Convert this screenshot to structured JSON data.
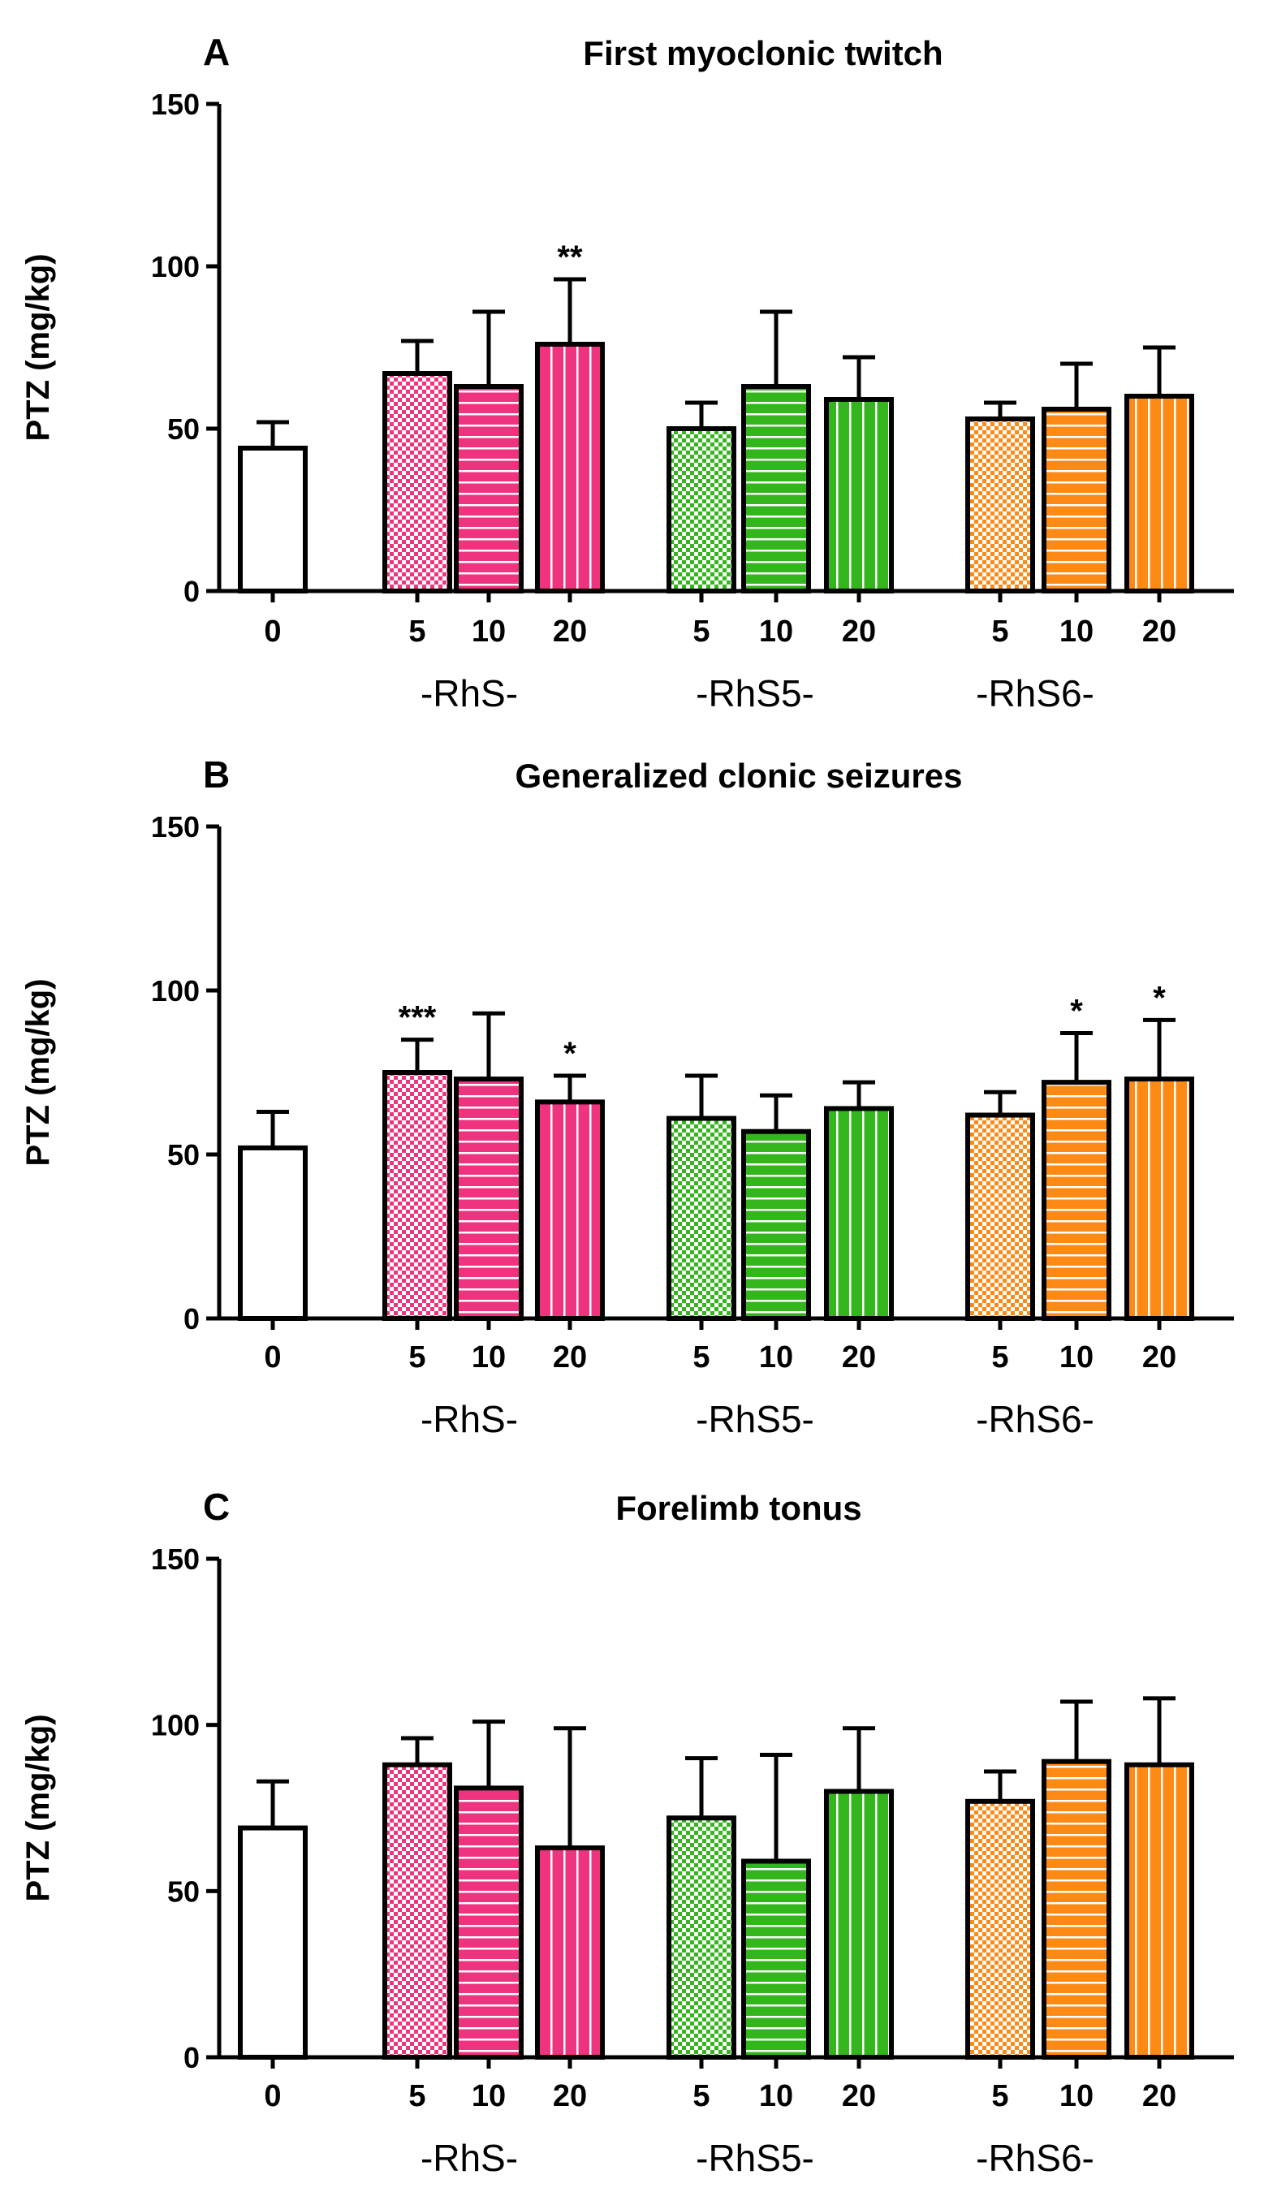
{
  "chart_data": [
    {
      "type": "bar",
      "panel_label": "A",
      "title": "First myoclonic twitch",
      "ylabel": "PTZ (mg/kg)",
      "ylim": [
        0,
        150
      ],
      "yticks": [
        0,
        50,
        100,
        150
      ],
      "groups": [
        {
          "label": "",
          "bars": [
            {
              "dose": "0",
              "value": 44,
              "err": 8,
              "color": "#ffffff",
              "pattern": "none",
              "sig": ""
            }
          ]
        },
        {
          "label": "-RhS-",
          "bars": [
            {
              "dose": "5",
              "value": 67,
              "err": 10,
              "color": "#f0337f",
              "pattern": "check",
              "sig": ""
            },
            {
              "dose": "10",
              "value": 63,
              "err": 23,
              "color": "#f0337f",
              "pattern": "hstripe",
              "sig": ""
            },
            {
              "dose": "20",
              "value": 76,
              "err": 20,
              "color": "#f0337f",
              "pattern": "vstripe",
              "sig": "**"
            }
          ]
        },
        {
          "label": "-RhS5-",
          "bars": [
            {
              "dose": "5",
              "value": 50,
              "err": 8,
              "color": "#33b51c",
              "pattern": "check",
              "sig": ""
            },
            {
              "dose": "10",
              "value": 63,
              "err": 23,
              "color": "#33b51c",
              "pattern": "hstripe",
              "sig": ""
            },
            {
              "dose": "20",
              "value": 59,
              "err": 13,
              "color": "#33b51c",
              "pattern": "vstripe",
              "sig": ""
            }
          ]
        },
        {
          "label": "-RhS6-",
          "bars": [
            {
              "dose": "5",
              "value": 53,
              "err": 5,
              "color": "#fe8a16",
              "pattern": "check",
              "sig": ""
            },
            {
              "dose": "10",
              "value": 56,
              "err": 14,
              "color": "#fe8a16",
              "pattern": "hstripe",
              "sig": ""
            },
            {
              "dose": "20",
              "value": 60,
              "err": 15,
              "color": "#fe8a16",
              "pattern": "vstripe",
              "sig": ""
            }
          ]
        }
      ]
    },
    {
      "type": "bar",
      "panel_label": "B",
      "title": "Generalized clonic seizures",
      "ylabel": "PTZ (mg/kg)",
      "ylim": [
        0,
        150
      ],
      "yticks": [
        0,
        50,
        100,
        150
      ],
      "groups": [
        {
          "label": "",
          "bars": [
            {
              "dose": "0",
              "value": 52,
              "err": 11,
              "color": "#ffffff",
              "pattern": "none",
              "sig": ""
            }
          ]
        },
        {
          "label": "-RhS-",
          "bars": [
            {
              "dose": "5",
              "value": 75,
              "err": 10,
              "color": "#f0337f",
              "pattern": "check",
              "sig": "***"
            },
            {
              "dose": "10",
              "value": 73,
              "err": 20,
              "color": "#f0337f",
              "pattern": "hstripe",
              "sig": ""
            },
            {
              "dose": "20",
              "value": 66,
              "err": 8,
              "color": "#f0337f",
              "pattern": "vstripe",
              "sig": "*"
            }
          ]
        },
        {
          "label": "-RhS5-",
          "bars": [
            {
              "dose": "5",
              "value": 61,
              "err": 13,
              "color": "#33b51c",
              "pattern": "check",
              "sig": ""
            },
            {
              "dose": "10",
              "value": 57,
              "err": 11,
              "color": "#33b51c",
              "pattern": "hstripe",
              "sig": ""
            },
            {
              "dose": "20",
              "value": 64,
              "err": 8,
              "color": "#33b51c",
              "pattern": "vstripe",
              "sig": ""
            }
          ]
        },
        {
          "label": "-RhS6-",
          "bars": [
            {
              "dose": "5",
              "value": 62,
              "err": 7,
              "color": "#fe8a16",
              "pattern": "check",
              "sig": ""
            },
            {
              "dose": "10",
              "value": 72,
              "err": 15,
              "color": "#fe8a16",
              "pattern": "hstripe",
              "sig": "*"
            },
            {
              "dose": "20",
              "value": 73,
              "err": 18,
              "color": "#fe8a16",
              "pattern": "vstripe",
              "sig": "*"
            }
          ]
        }
      ]
    },
    {
      "type": "bar",
      "panel_label": "C",
      "title": "Forelimb tonus",
      "ylabel": "PTZ (mg/kg)",
      "ylim": [
        0,
        150
      ],
      "yticks": [
        0,
        50,
        100,
        150
      ],
      "groups": [
        {
          "label": "",
          "bars": [
            {
              "dose": "0",
              "value": 69,
              "err": 14,
              "color": "#ffffff",
              "pattern": "none",
              "sig": ""
            }
          ]
        },
        {
          "label": "-RhS-",
          "bars": [
            {
              "dose": "5",
              "value": 88,
              "err": 8,
              "color": "#f0337f",
              "pattern": "check",
              "sig": ""
            },
            {
              "dose": "10",
              "value": 81,
              "err": 20,
              "color": "#f0337f",
              "pattern": "hstripe",
              "sig": ""
            },
            {
              "dose": "20",
              "value": 63,
              "err": 36,
              "color": "#f0337f",
              "pattern": "vstripe",
              "sig": ""
            }
          ]
        },
        {
          "label": "-RhS5-",
          "bars": [
            {
              "dose": "5",
              "value": 72,
              "err": 18,
              "color": "#33b51c",
              "pattern": "check",
              "sig": ""
            },
            {
              "dose": "10",
              "value": 59,
              "err": 32,
              "color": "#33b51c",
              "pattern": "hstripe",
              "sig": ""
            },
            {
              "dose": "20",
              "value": 80,
              "err": 19,
              "color": "#33b51c",
              "pattern": "vstripe",
              "sig": ""
            }
          ]
        },
        {
          "label": "-RhS6-",
          "bars": [
            {
              "dose": "5",
              "value": 77,
              "err": 9,
              "color": "#fe8a16",
              "pattern": "check",
              "sig": ""
            },
            {
              "dose": "10",
              "value": 89,
              "err": 18,
              "color": "#fe8a16",
              "pattern": "hstripe",
              "sig": ""
            },
            {
              "dose": "20",
              "value": 88,
              "err": 20,
              "color": "#fe8a16",
              "pattern": "vstripe",
              "sig": ""
            }
          ]
        }
      ]
    }
  ]
}
